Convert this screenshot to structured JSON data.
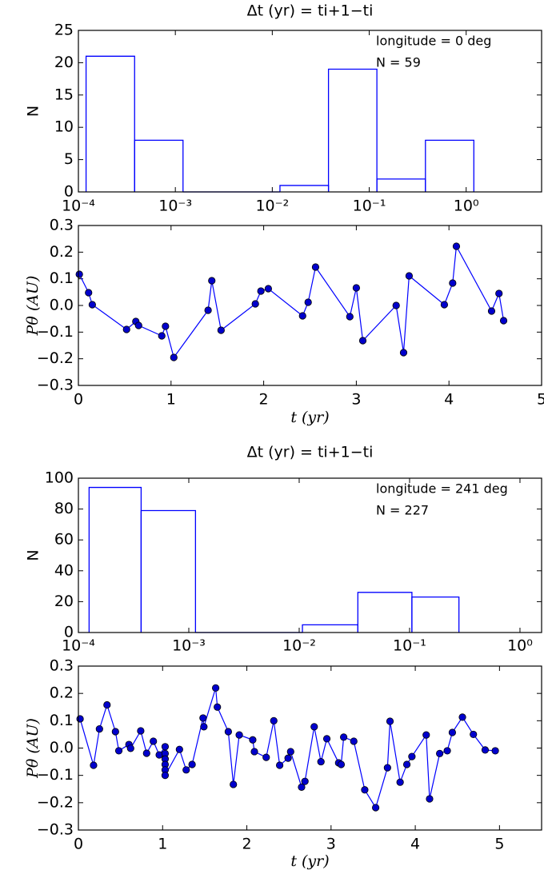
{
  "chart_data": [
    {
      "type": "histogram",
      "title": "Δt (yr) = ti+1−ti",
      "ylabel": "N",
      "annotations": [
        "longitude = 0 deg",
        "N = 59"
      ],
      "bins": [
        0.00012,
        0.00038,
        0.0012,
        0.0038,
        0.012,
        0.038,
        0.12,
        0.38,
        1.2
      ],
      "counts": [
        21,
        8,
        0,
        0,
        1,
        19,
        2,
        8
      ],
      "color": "#0000ff",
      "xscale": "log",
      "xlim": [
        0.0001,
        6
      ],
      "ylim": [
        0,
        25
      ],
      "yticks": [
        0,
        5,
        10,
        15,
        20,
        25
      ],
      "xticks": [
        {
          "value": 0.0001,
          "label": "10⁻⁴"
        },
        {
          "value": 0.001,
          "label": "10⁻³"
        },
        {
          "value": 0.01,
          "label": "10⁻²"
        },
        {
          "value": 0.1,
          "label": "10⁻¹"
        },
        {
          "value": 1,
          "label": "10⁰"
        }
      ]
    },
    {
      "type": "line",
      "xlabel": "t (yr)",
      "ylabel": "Pθ (AU)",
      "color": "#0000ff",
      "marker_color": "#0000cc",
      "x": [
        0.01,
        0.11,
        0.15,
        0.52,
        0.62,
        0.65,
        0.9,
        0.94,
        1.03,
        1.4,
        1.44,
        1.54,
        1.91,
        1.97,
        2.05,
        2.42,
        2.48,
        2.56,
        2.93,
        3.0,
        3.07,
        3.43,
        3.51,
        3.57,
        3.95,
        4.04,
        4.08,
        4.46,
        4.54,
        4.59
      ],
      "values": [
        0.117,
        0.048,
        0.003,
        -0.09,
        -0.06,
        -0.075,
        -0.114,
        -0.078,
        -0.195,
        -0.018,
        0.093,
        -0.093,
        0.006,
        0.054,
        0.063,
        -0.039,
        0.012,
        0.144,
        -0.042,
        0.066,
        -0.132,
        0.0,
        -0.177,
        0.111,
        0.003,
        0.084,
        0.222,
        -0.021,
        0.045,
        -0.057
      ],
      "xlim": [
        0,
        5
      ],
      "ylim": [
        -0.3,
        0.3
      ],
      "xticks": [
        0,
        1,
        2,
        3,
        4,
        5
      ],
      "yticks": [
        {
          "value": -0.3,
          "label": "−0.3"
        },
        {
          "value": -0.2,
          "label": "−0.2"
        },
        {
          "value": -0.1,
          "label": "−0.1"
        },
        {
          "value": 0,
          "label": "0.0"
        },
        0.1,
        0.2,
        0.3
      ]
    },
    {
      "type": "histogram",
      "title": "Δt (yr) = ti+1−ti",
      "ylabel": "N",
      "annotations": [
        "longitude = 241 deg",
        "N = 227"
      ],
      "bins": [
        0.000125,
        0.00037,
        0.00115,
        0.0035,
        0.0107,
        0.034,
        0.105,
        0.28
      ],
      "counts": [
        94,
        79,
        0,
        0,
        5,
        26,
        23
      ],
      "color": "#0000ff",
      "xscale": "log",
      "xlim": [
        0.0001,
        1.57
      ],
      "ylim": [
        0,
        100
      ],
      "yticks": [
        0,
        20,
        40,
        60,
        80,
        100
      ],
      "xticks": [
        {
          "value": 0.0001,
          "label": "10⁻⁴"
        },
        {
          "value": 0.001,
          "label": "10⁻³"
        },
        {
          "value": 0.01,
          "label": "10⁻²"
        },
        {
          "value": 0.1,
          "label": "10⁻¹"
        },
        {
          "value": 1,
          "label": "10⁰"
        }
      ]
    },
    {
      "type": "line",
      "xlabel": "t (yr)",
      "ylabel": "Pθ (AU)",
      "color": "#0000ff",
      "marker_color": "#0000cc",
      "x": [
        0.02,
        0.18,
        0.25,
        0.34,
        0.44,
        0.48,
        0.6,
        0.62,
        0.74,
        0.81,
        0.89,
        0.96,
        1.03,
        1.03,
        1.03,
        1.03,
        1.03,
        1.03,
        1.2,
        1.28,
        1.35,
        1.48,
        1.49,
        1.63,
        1.65,
        1.78,
        1.84,
        1.91,
        2.07,
        2.09,
        2.23,
        2.32,
        2.39,
        2.49,
        2.52,
        2.65,
        2.69,
        2.8,
        2.88,
        2.95,
        3.09,
        3.12,
        3.15,
        3.27,
        3.4,
        3.53,
        3.67,
        3.7,
        3.82,
        3.9,
        3.96,
        4.13,
        4.17,
        4.29,
        4.38,
        4.44,
        4.56,
        4.69,
        4.83,
        4.95
      ],
      "values": [
        0.107,
        -0.063,
        0.07,
        0.158,
        0.06,
        -0.01,
        0.013,
        -0.001,
        0.063,
        -0.019,
        0.025,
        -0.025,
        0.005,
        -0.02,
        -0.04,
        -0.06,
        -0.08,
        -0.1,
        -0.005,
        -0.08,
        -0.06,
        0.11,
        0.078,
        0.22,
        0.15,
        0.06,
        -0.133,
        0.048,
        0.03,
        -0.013,
        -0.034,
        0.1,
        -0.063,
        -0.037,
        -0.013,
        -0.143,
        -0.122,
        0.078,
        -0.05,
        0.034,
        -0.054,
        -0.06,
        0.04,
        0.025,
        -0.153,
        -0.218,
        -0.072,
        0.098,
        -0.125,
        -0.06,
        -0.031,
        0.048,
        -0.186,
        -0.02,
        -0.01,
        0.057,
        0.113,
        0.05,
        -0.007,
        -0.01
      ],
      "xlim": [
        0,
        5.5
      ],
      "ylim": [
        -0.3,
        0.3
      ],
      "xticks": [
        0,
        1,
        2,
        3,
        4,
        5
      ],
      "yticks": [
        {
          "value": -0.3,
          "label": "−0.3"
        },
        {
          "value": -0.2,
          "label": "−0.2"
        },
        {
          "value": -0.1,
          "label": "−0.1"
        },
        {
          "value": 0,
          "label": "0.0"
        },
        0.1,
        0.2,
        0.3
      ]
    }
  ]
}
